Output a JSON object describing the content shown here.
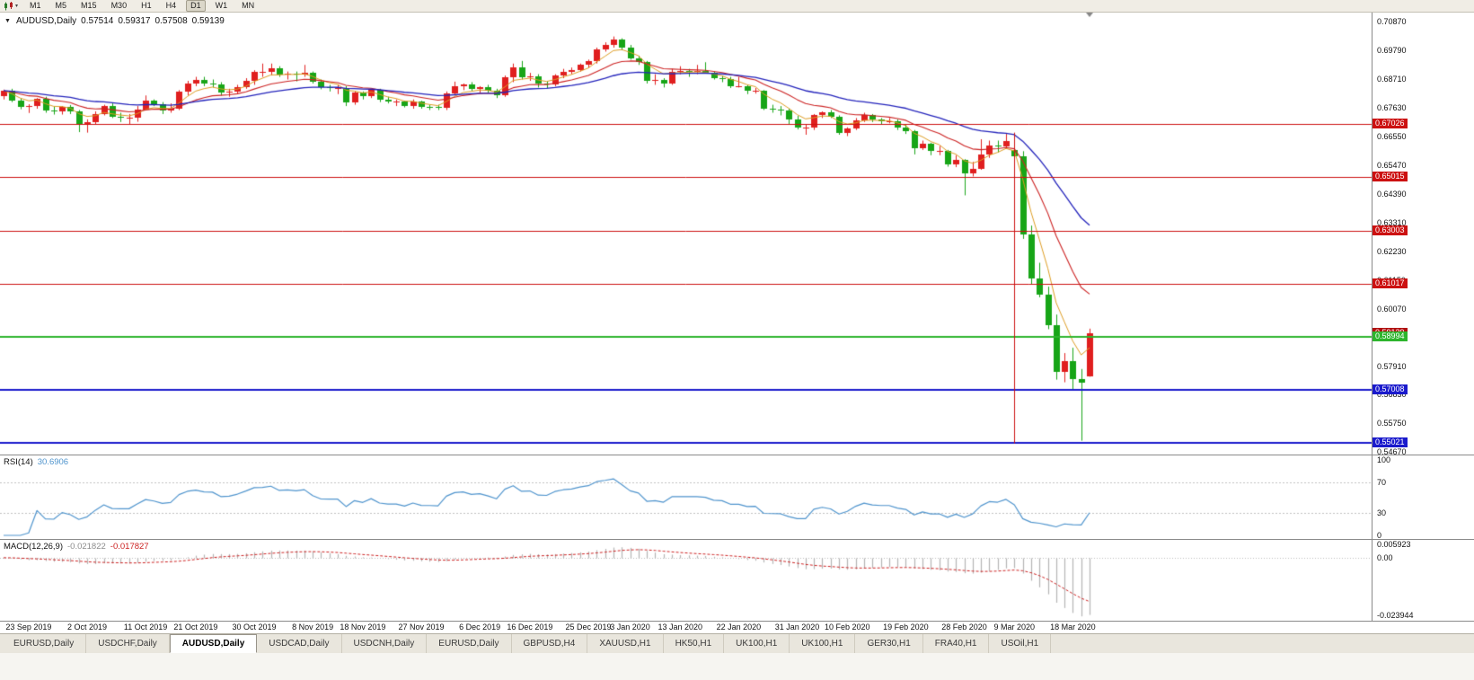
{
  "toolbar": {
    "timeframes": [
      "M1",
      "M5",
      "M15",
      "M30",
      "H1",
      "H4",
      "D1",
      "W1",
      "MN"
    ],
    "active_timeframe": "D1"
  },
  "chart_header": {
    "symbol_label": "AUDUSD,Daily",
    "open": "0.57514",
    "high": "0.59317",
    "low": "0.57508",
    "close": "0.59139"
  },
  "price_axis": {
    "labels": [
      "0.70870",
      "0.69790",
      "0.68710",
      "0.67630",
      "0.66550",
      "0.65470",
      "0.64390",
      "0.63310",
      "0.62230",
      "0.61150",
      "0.60070",
      "0.58990",
      "0.57910",
      "0.56830",
      "0.55750",
      "0.54670"
    ]
  },
  "rsi_panel": {
    "label": "RSI(14)",
    "value": "30.6906",
    "axis_labels": [
      "100",
      "70",
      "30",
      "0"
    ],
    "levels": [
      70,
      30
    ]
  },
  "macd_panel": {
    "label": "MACD(12,26,9)",
    "value_main": "-0.021822",
    "value_signal": "-0.017827",
    "axis_labels": [
      "0.005923",
      "0.00",
      "-0.023944"
    ],
    "max": 0.005923,
    "min": -0.023944
  },
  "date_axis": {
    "labels": [
      {
        "text": "23 Sep 2019",
        "index": 3
      },
      {
        "text": "2 Oct 2019",
        "index": 10
      },
      {
        "text": "11 Oct 2019",
        "index": 17
      },
      {
        "text": "21 Oct 2019",
        "index": 23
      },
      {
        "text": "30 Oct 2019",
        "index": 30
      },
      {
        "text": "8 Nov 2019",
        "index": 37
      },
      {
        "text": "18 Nov 2019",
        "index": 43
      },
      {
        "text": "27 Nov 2019",
        "index": 50
      },
      {
        "text": "6 Dec 2019",
        "index": 57
      },
      {
        "text": "16 Dec 2019",
        "index": 63
      },
      {
        "text": "25 Dec 2019",
        "index": 70
      },
      {
        "text": "3 Jan 2020",
        "index": 75
      },
      {
        "text": "13 Jan 2020",
        "index": 81
      },
      {
        "text": "22 Jan 2020",
        "index": 88
      },
      {
        "text": "31 Jan 2020",
        "index": 95
      },
      {
        "text": "10 Feb 2020",
        "index": 101
      },
      {
        "text": "19 Feb 2020",
        "index": 108
      },
      {
        "text": "28 Feb 2020",
        "index": 115
      },
      {
        "text": "9 Mar 2020",
        "index": 121
      },
      {
        "text": "18 Mar 2020",
        "index": 128
      }
    ]
  },
  "tabbar": {
    "tabs": [
      "EURUSD,Daily",
      "USDCHF,Daily",
      "AUDUSD,Daily",
      "USDCAD,Daily",
      "USDCNH,Daily",
      "EURUSD,Daily",
      "GBPUSD,H4",
      "XAUUSD,H1",
      "HK50,H1",
      "UK100,H1",
      "UK100,H1",
      "GER30,H1",
      "FRA40,H1",
      "USOil,H1"
    ],
    "active_index": 2
  },
  "chart_data": {
    "type": "candlestick",
    "symbol": "AUDUSD",
    "timeframe": "Daily",
    "title": "AUDUSD,Daily 0.57514 0.59317 0.57508 0.59139",
    "price_range": {
      "top": 0.7122,
      "bottom": 0.5458
    },
    "colors": {
      "bull": "#e01f1f",
      "bear": "#17a517",
      "bid_tag": "#b01010",
      "rsi_line": "#4f94cd",
      "macd_hist": "#b4b4b4",
      "macd_signal": "#cc2222"
    },
    "bid_price": 0.59139,
    "horizontal_lines": [
      {
        "price": 0.67026,
        "color": "#cc1111",
        "width": 1,
        "role": "resistance"
      },
      {
        "price": 0.65015,
        "color": "#cc1111",
        "width": 1,
        "role": "resistance"
      },
      {
        "price": 0.63003,
        "color": "#cc1111",
        "width": 1,
        "role": "resistance"
      },
      {
        "price": 0.61017,
        "color": "#cc1111",
        "width": 1,
        "role": "resistance"
      },
      {
        "price": 0.58994,
        "color": "#2db52d",
        "width": 2,
        "role": "level"
      },
      {
        "price": 0.57008,
        "color": "#1a1acc",
        "width": 2,
        "role": "support"
      },
      {
        "price": 0.55021,
        "color": "#1a1acc",
        "width": 2,
        "role": "support"
      }
    ],
    "vertical_line": {
      "index": 121,
      "from": 0.667,
      "to": 0.55,
      "color": "#cc1111"
    },
    "moving_averages": [
      {
        "period": 5,
        "color": "#dd9c22",
        "width": 1
      },
      {
        "period": 13,
        "color": "#cc2222",
        "width": 1.1
      },
      {
        "period": 30,
        "color": "#2323bb",
        "width": 1.3
      }
    ],
    "indicators": {
      "rsi": {
        "period": 14,
        "current": 30.6906
      },
      "macd": {
        "fast": 12,
        "slow": 26,
        "signal": 9,
        "current": -0.021822,
        "signal_current": -0.017827
      }
    },
    "candles": [
      [
        0.6808,
        0.6832,
        0.6795,
        0.6828
      ],
      [
        0.6828,
        0.6835,
        0.6785,
        0.6792
      ],
      [
        0.6792,
        0.68,
        0.6758,
        0.6768
      ],
      [
        0.6768,
        0.6777,
        0.6744,
        0.677
      ],
      [
        0.677,
        0.68,
        0.676,
        0.6797
      ],
      [
        0.6797,
        0.6805,
        0.6745,
        0.6752
      ],
      [
        0.6752,
        0.6768,
        0.6738,
        0.6749
      ],
      [
        0.6749,
        0.677,
        0.6738,
        0.6766
      ],
      [
        0.6766,
        0.6774,
        0.674,
        0.675
      ],
      [
        0.675,
        0.6755,
        0.6672,
        0.67
      ],
      [
        0.67,
        0.672,
        0.667,
        0.671
      ],
      [
        0.671,
        0.675,
        0.67,
        0.674
      ],
      [
        0.674,
        0.6775,
        0.6735,
        0.677
      ],
      [
        0.677,
        0.678,
        0.6725,
        0.673
      ],
      [
        0.673,
        0.6745,
        0.671,
        0.6727
      ],
      [
        0.6727,
        0.674,
        0.67,
        0.6727
      ],
      [
        0.6727,
        0.677,
        0.6711,
        0.6758
      ],
      [
        0.6758,
        0.681,
        0.6755,
        0.679
      ],
      [
        0.679,
        0.6795,
        0.677,
        0.6777
      ],
      [
        0.6777,
        0.6785,
        0.674,
        0.6755
      ],
      [
        0.6755,
        0.678,
        0.6745,
        0.6761
      ],
      [
        0.6761,
        0.683,
        0.6755,
        0.6823
      ],
      [
        0.6823,
        0.6865,
        0.681,
        0.6855
      ],
      [
        0.6855,
        0.688,
        0.6845,
        0.6867
      ],
      [
        0.6867,
        0.688,
        0.6845,
        0.6854
      ],
      [
        0.6854,
        0.687,
        0.684,
        0.6853
      ],
      [
        0.6853,
        0.686,
        0.681,
        0.6821
      ],
      [
        0.6821,
        0.6835,
        0.6805,
        0.6824
      ],
      [
        0.6824,
        0.685,
        0.6815,
        0.684
      ],
      [
        0.684,
        0.6875,
        0.6835,
        0.6866
      ],
      [
        0.6866,
        0.6905,
        0.685,
        0.6898
      ],
      [
        0.6898,
        0.693,
        0.688,
        0.69
      ],
      [
        0.69,
        0.693,
        0.6885,
        0.6912
      ],
      [
        0.6912,
        0.692,
        0.688,
        0.6888
      ],
      [
        0.6888,
        0.69,
        0.687,
        0.6893
      ],
      [
        0.6893,
        0.69,
        0.6863,
        0.6888
      ],
      [
        0.6888,
        0.6925,
        0.688,
        0.6896
      ],
      [
        0.6896,
        0.69,
        0.6855,
        0.6862
      ],
      [
        0.6862,
        0.687,
        0.6833,
        0.684
      ],
      [
        0.684,
        0.685,
        0.6825,
        0.6839
      ],
      [
        0.6839,
        0.685,
        0.6815,
        0.6839
      ],
      [
        0.6839,
        0.6845,
        0.677,
        0.6785
      ],
      [
        0.6785,
        0.6825,
        0.6775,
        0.682
      ],
      [
        0.682,
        0.6825,
        0.6795,
        0.6806
      ],
      [
        0.6806,
        0.6835,
        0.68,
        0.683
      ],
      [
        0.683,
        0.6835,
        0.6785,
        0.6795
      ],
      [
        0.6795,
        0.6805,
        0.678,
        0.6786
      ],
      [
        0.6786,
        0.6795,
        0.677,
        0.6786
      ],
      [
        0.6786,
        0.679,
        0.6765,
        0.6769
      ],
      [
        0.6769,
        0.6795,
        0.676,
        0.6786
      ],
      [
        0.6786,
        0.679,
        0.676,
        0.6767
      ],
      [
        0.6767,
        0.6775,
        0.6755,
        0.6766
      ],
      [
        0.6766,
        0.6775,
        0.6755,
        0.6763
      ],
      [
        0.6763,
        0.6825,
        0.6755,
        0.6818
      ],
      [
        0.6818,
        0.6862,
        0.681,
        0.6845
      ],
      [
        0.6845,
        0.6855,
        0.683,
        0.685
      ],
      [
        0.685,
        0.686,
        0.6825,
        0.6835
      ],
      [
        0.6835,
        0.6845,
        0.682,
        0.684
      ],
      [
        0.684,
        0.685,
        0.682,
        0.6827
      ],
      [
        0.6827,
        0.6835,
        0.68,
        0.681
      ],
      [
        0.681,
        0.6885,
        0.6805,
        0.688
      ],
      [
        0.688,
        0.693,
        0.686,
        0.6916
      ],
      [
        0.6916,
        0.694,
        0.687,
        0.688
      ],
      [
        0.688,
        0.6895,
        0.6865,
        0.6883
      ],
      [
        0.6883,
        0.689,
        0.684,
        0.6854
      ],
      [
        0.6854,
        0.6865,
        0.6838,
        0.6852
      ],
      [
        0.6852,
        0.689,
        0.6845,
        0.6884
      ],
      [
        0.6884,
        0.691,
        0.6875,
        0.69
      ],
      [
        0.69,
        0.6915,
        0.689,
        0.6907
      ],
      [
        0.6907,
        0.693,
        0.69,
        0.6925
      ],
      [
        0.6925,
        0.6945,
        0.6915,
        0.6938
      ],
      [
        0.6938,
        0.699,
        0.693,
        0.6983
      ],
      [
        0.6983,
        0.701,
        0.6975,
        0.7
      ],
      [
        0.7,
        0.7032,
        0.699,
        0.7021
      ],
      [
        0.7021,
        0.7025,
        0.698,
        0.699
      ],
      [
        0.699,
        0.7,
        0.6945,
        0.6951
      ],
      [
        0.6951,
        0.696,
        0.6925,
        0.6935
      ],
      [
        0.6935,
        0.694,
        0.6855,
        0.6865
      ],
      [
        0.6865,
        0.689,
        0.685,
        0.687
      ],
      [
        0.687,
        0.6875,
        0.684,
        0.6855
      ],
      [
        0.6855,
        0.691,
        0.685,
        0.69
      ],
      [
        0.69,
        0.692,
        0.689,
        0.6901
      ],
      [
        0.6901,
        0.691,
        0.688,
        0.69
      ],
      [
        0.69,
        0.6925,
        0.689,
        0.6901
      ],
      [
        0.6901,
        0.6935,
        0.6895,
        0.6896
      ],
      [
        0.6896,
        0.69,
        0.687,
        0.6875
      ],
      [
        0.6875,
        0.6885,
        0.686,
        0.6872
      ],
      [
        0.6872,
        0.688,
        0.6838,
        0.6845
      ],
      [
        0.6845,
        0.688,
        0.684,
        0.6845
      ],
      [
        0.6845,
        0.685,
        0.6815,
        0.6827
      ],
      [
        0.6827,
        0.6838,
        0.6817,
        0.6828
      ],
      [
        0.6828,
        0.683,
        0.6755,
        0.676
      ],
      [
        0.676,
        0.6775,
        0.6745,
        0.6757
      ],
      [
        0.6757,
        0.677,
        0.6735,
        0.6755
      ],
      [
        0.6755,
        0.676,
        0.67,
        0.672
      ],
      [
        0.672,
        0.6733,
        0.6682,
        0.669
      ],
      [
        0.669,
        0.67,
        0.6662,
        0.669
      ],
      [
        0.669,
        0.674,
        0.668,
        0.6735
      ],
      [
        0.6735,
        0.675,
        0.6725,
        0.6745
      ],
      [
        0.6745,
        0.6755,
        0.6725,
        0.673
      ],
      [
        0.673,
        0.6735,
        0.6662,
        0.667
      ],
      [
        0.667,
        0.669,
        0.6657,
        0.6685
      ],
      [
        0.6685,
        0.6725,
        0.668,
        0.6715
      ],
      [
        0.6715,
        0.6745,
        0.671,
        0.6735
      ],
      [
        0.6735,
        0.674,
        0.671,
        0.6718
      ],
      [
        0.6718,
        0.6725,
        0.67,
        0.6713
      ],
      [
        0.6713,
        0.6725,
        0.6705,
        0.6713
      ],
      [
        0.6713,
        0.672,
        0.668,
        0.669
      ],
      [
        0.669,
        0.67,
        0.6665,
        0.6677
      ],
      [
        0.6677,
        0.668,
        0.6588,
        0.661
      ],
      [
        0.661,
        0.664,
        0.6605,
        0.6627
      ],
      [
        0.6627,
        0.6632,
        0.6585,
        0.6601
      ],
      [
        0.6601,
        0.662,
        0.6585,
        0.6601
      ],
      [
        0.6601,
        0.6605,
        0.6542,
        0.655
      ],
      [
        0.655,
        0.6585,
        0.654,
        0.6567
      ],
      [
        0.6567,
        0.657,
        0.6434,
        0.6515
      ],
      [
        0.6515,
        0.656,
        0.6505,
        0.6535
      ],
      [
        0.6535,
        0.6645,
        0.653,
        0.6589
      ],
      [
        0.6589,
        0.664,
        0.6575,
        0.6623
      ],
      [
        0.6623,
        0.664,
        0.6595,
        0.6617
      ],
      [
        0.6617,
        0.6665,
        0.661,
        0.664
      ],
      [
        0.6605,
        0.665,
        0.6313,
        0.6582
      ],
      [
        0.6582,
        0.66,
        0.627,
        0.6285
      ],
      [
        0.6285,
        0.632,
        0.61,
        0.612
      ],
      [
        0.612,
        0.618,
        0.605,
        0.606
      ],
      [
        0.606,
        0.609,
        0.593,
        0.5945
      ],
      [
        0.5945,
        0.5985,
        0.574,
        0.577
      ],
      [
        0.577,
        0.584,
        0.573,
        0.581
      ],
      [
        0.581,
        0.586,
        0.57,
        0.5741
      ],
      [
        0.5741,
        0.578,
        0.551,
        0.573
      ],
      [
        0.5751,
        0.5932,
        0.5751,
        0.5914
      ]
    ]
  }
}
